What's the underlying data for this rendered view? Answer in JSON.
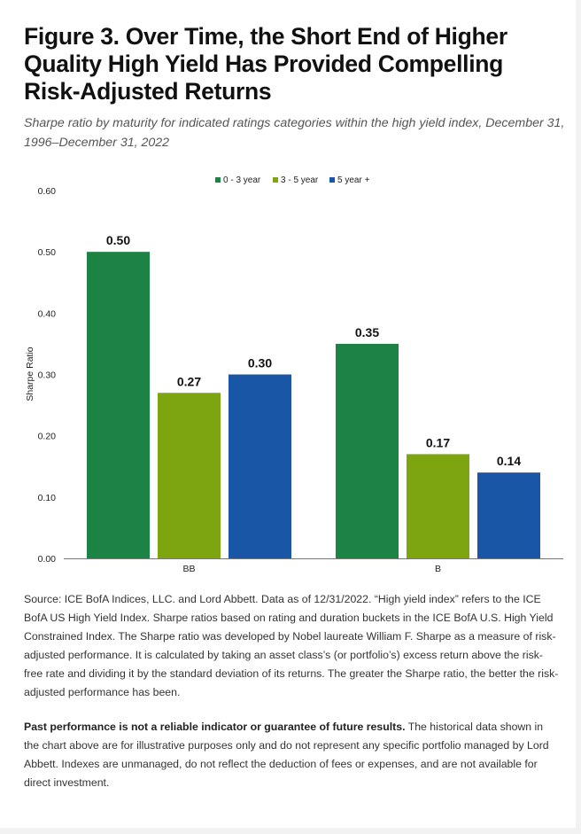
{
  "title": "Figure 3. Over Time, the Short End of Higher Quality High Yield Has Provided Compelling Risk-Adjusted Returns",
  "subtitle": "Sharpe ratio by maturity for indicated ratings categories within the high yield index, December 31, 1996–December 31, 2022",
  "chart_data": {
    "type": "bar",
    "categories": [
      "BB",
      "B"
    ],
    "series": [
      {
        "name": "0 - 3 year",
        "values": [
          0.5,
          0.35
        ],
        "labels": [
          "0.50",
          "0.35"
        ],
        "color": "#1c8344"
      },
      {
        "name": "3 - 5 year",
        "values": [
          0.27,
          0.17
        ],
        "labels": [
          "0.27",
          "0.17"
        ],
        "color": "#7da50f"
      },
      {
        "name": "5 year +",
        "values": [
          0.3,
          0.14
        ],
        "labels": [
          "0.30",
          "0.14"
        ],
        "color": "#1a56a6"
      }
    ],
    "ylabel": "Sharpe Ratio",
    "ylim": [
      0,
      0.6
    ],
    "yticks": [
      0.0,
      0.1,
      0.2,
      0.3,
      0.4,
      0.5,
      0.6
    ],
    "ytick_labels": [
      "0.00",
      "0.10",
      "0.20",
      "0.30",
      "0.40",
      "0.50",
      "0.60"
    ],
    "legend_position": "top-center",
    "grid": false
  },
  "source_text": "Source: ICE BofA Indices, LLC. and Lord Abbett. Data as of 12/31/2022. “High yield index” refers to the ICE BofA US High Yield Index. Sharpe ratios based on rating and duration buckets in the ICE BofA U.S. High Yield Constrained Index. The Sharpe ratio was developed by Nobel laureate William F. Sharpe as a measure of risk-adjusted performance. It is calculated by taking an asset class’s (or portfolio’s) excess return above the risk-free rate and dividing it by the standard deviation of its returns. The greater the Sharpe ratio, the better the risk-adjusted performance has been.",
  "disclaimer_bold": "Past performance is not a reliable indicator or guarantee of future results.",
  "disclaimer_text": " The historical data shown in the chart above are for illustrative purposes only and do not represent any specific portfolio managed by Lord Abbett. Indexes are unmanaged, do not reflect the deduction of fees or expenses, and are not available for direct investment."
}
